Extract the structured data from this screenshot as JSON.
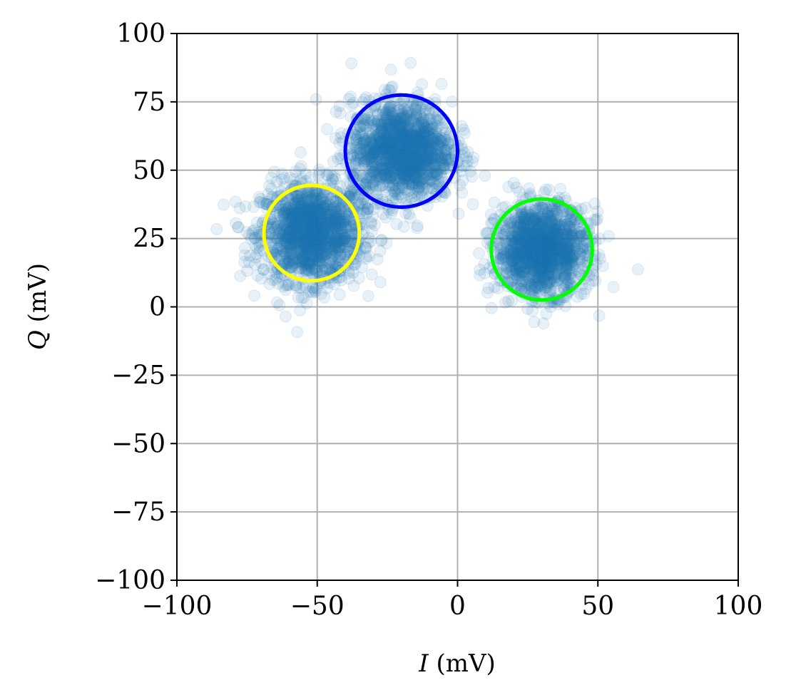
{
  "chart_data": {
    "type": "scatter",
    "xlabel": {
      "var": "I",
      "unit": " (mV)"
    },
    "ylabel": {
      "var": "Q",
      "unit": " (mV)"
    },
    "xlim": [
      -100,
      100
    ],
    "ylim": [
      -100,
      100
    ],
    "xticks": [
      -100,
      -50,
      0,
      50,
      100
    ],
    "yticks": [
      -100,
      -75,
      -50,
      -25,
      0,
      25,
      50,
      75,
      100
    ],
    "xtick_labels": [
      "−100",
      "−50",
      "0",
      "50",
      "100"
    ],
    "ytick_labels": [
      "−100",
      "−75",
      "−50",
      "−25",
      "0",
      "25",
      "50",
      "75",
      "100"
    ],
    "grid": true,
    "point_color": "#1f77b4",
    "point_alpha": 0.1,
    "clusters": [
      {
        "center": [
          -52,
          27
        ],
        "spread": 9,
        "count": 1500
      },
      {
        "center": [
          -20,
          57
        ],
        "spread": 9,
        "count": 1500
      },
      {
        "center": [
          30,
          21
        ],
        "spread": 8,
        "count": 1500
      }
    ],
    "circles": [
      {
        "center": [
          -52,
          27
        ],
        "radius": 17,
        "color": "#ffff00"
      },
      {
        "center": [
          -20,
          57
        ],
        "radius": 20,
        "color": "#0000ff"
      },
      {
        "center": [
          30,
          21
        ],
        "radius": 18,
        "color": "#00ff00"
      }
    ]
  }
}
